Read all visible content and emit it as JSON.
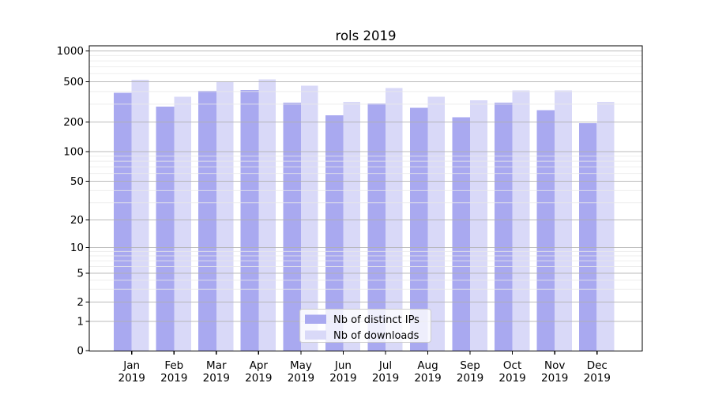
{
  "chart_data": {
    "type": "bar",
    "title": "rols 2019",
    "categories": [
      "Jan",
      "Feb",
      "Mar",
      "Apr",
      "May",
      "Jun",
      "Jul",
      "Aug",
      "Sep",
      "Oct",
      "Nov",
      "Dec"
    ],
    "category_year_line": "2019",
    "series": [
      {
        "name": "Nb of distinct IPs",
        "color": "#a9a9f0",
        "values": [
          390,
          283,
          406,
          414,
          310,
          232,
          306,
          277,
          223,
          311,
          262,
          194
        ]
      },
      {
        "name": "Nb of downloads",
        "color": "#d9d9f8",
        "values": [
          524,
          356,
          498,
          529,
          458,
          315,
          435,
          357,
          328,
          412,
          411,
          317
        ]
      }
    ],
    "xlabel": "",
    "ylabel": "",
    "y_scale": "log-like with zero baseline",
    "y_ticks": [
      0,
      1,
      2,
      5,
      10,
      20,
      50,
      100,
      200,
      500,
      1000
    ],
    "y_minor_ticks": [
      3,
      4,
      6,
      7,
      8,
      9,
      30,
      40,
      60,
      70,
      80,
      90,
      300,
      400,
      600,
      700,
      800,
      900
    ],
    "ylim": [
      0,
      1120
    ],
    "grid": true,
    "legend_position": "lower center",
    "colors": {
      "major_gridline": "#b0b0b0",
      "minor_gridline": "#e9e9e9",
      "axis": "#000000",
      "legend_border": "#cccccc"
    }
  }
}
